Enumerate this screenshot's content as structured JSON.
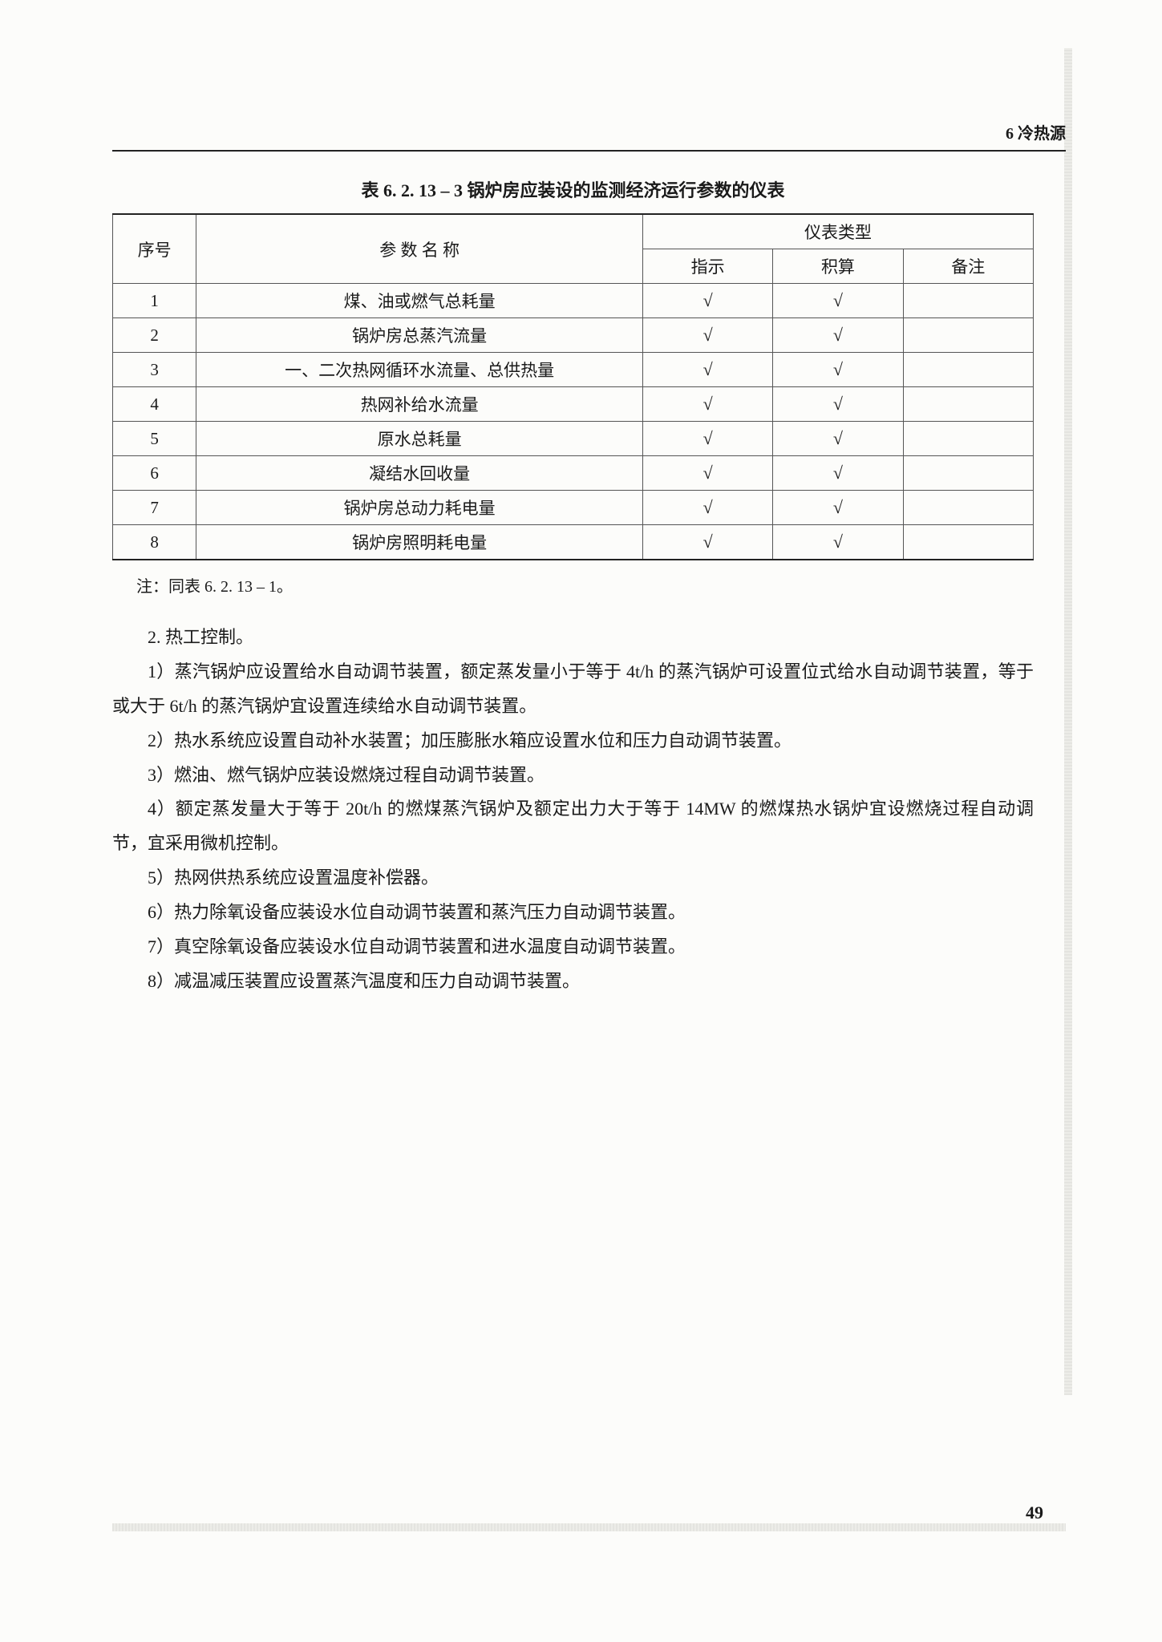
{
  "header": {
    "chapter": "6  冷热源"
  },
  "table": {
    "caption": "表 6. 2. 13 – 3  锅炉房应装设的监测经济运行参数的仪表",
    "head": {
      "seq": "序号",
      "param": "参 数 名 称",
      "type_group": "仪表类型",
      "indicator": "指示",
      "accumulator": "积算",
      "remark": "备注"
    },
    "rows": [
      {
        "seq": "1",
        "name": "煤、油或燃气总耗量",
        "ind": "√",
        "calc": "√",
        "note": ""
      },
      {
        "seq": "2",
        "name": "锅炉房总蒸汽流量",
        "ind": "√",
        "calc": "√",
        "note": ""
      },
      {
        "seq": "3",
        "name": "一、二次热网循环水流量、总供热量",
        "ind": "√",
        "calc": "√",
        "note": ""
      },
      {
        "seq": "4",
        "name": "热网补给水流量",
        "ind": "√",
        "calc": "√",
        "note": ""
      },
      {
        "seq": "5",
        "name": "原水总耗量",
        "ind": "√",
        "calc": "√",
        "note": ""
      },
      {
        "seq": "6",
        "name": "凝结水回收量",
        "ind": "√",
        "calc": "√",
        "note": ""
      },
      {
        "seq": "7",
        "name": "锅炉房总动力耗电量",
        "ind": "√",
        "calc": "√",
        "note": ""
      },
      {
        "seq": "8",
        "name": "锅炉房照明耗电量",
        "ind": "√",
        "calc": "√",
        "note": ""
      }
    ],
    "footnote": "注：同表 6. 2. 13 – 1。"
  },
  "body": {
    "heading2": "2.  热工控制。",
    "p1": "1）蒸汽锅炉应设置给水自动调节装置，额定蒸发量小于等于 4t/h 的蒸汽锅炉可设置位式给水自动调节装置，等于或大于 6t/h 的蒸汽锅炉宜设置连续给水自动调节装置。",
    "p2": "2）热水系统应设置自动补水装置；加压膨胀水箱应设置水位和压力自动调节装置。",
    "p3": "3）燃油、燃气锅炉应装设燃烧过程自动调节装置。",
    "p4": "4）额定蒸发量大于等于 20t/h 的燃煤蒸汽锅炉及额定出力大于等于 14MW 的燃煤热水锅炉宜设燃烧过程自动调节，宜采用微机控制。",
    "p5": "5）热网供热系统应设置温度补偿器。",
    "p6": "6）热力除氧设备应装设水位自动调节装置和蒸汽压力自动调节装置。",
    "p7": "7）真空除氧设备应装设水位自动调节装置和进水温度自动调节装置。",
    "p8": "8）减温减压装置应设置蒸汽温度和压力自动调节装置。"
  },
  "page_number": "49"
}
